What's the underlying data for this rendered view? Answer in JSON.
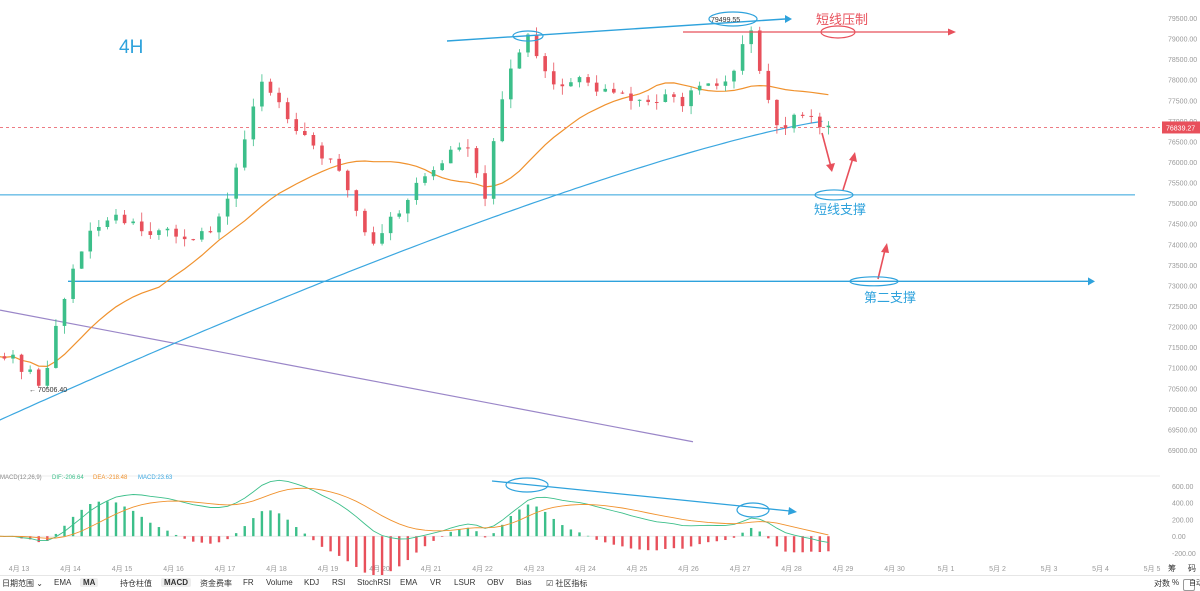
{
  "chart_data": {
    "type": "candlestick",
    "timeframe_label": "4H",
    "y_ticks": [
      79500,
      79000,
      78500,
      78000,
      77500,
      77000,
      76500,
      76000,
      75500,
      75000,
      74500,
      74000,
      73500,
      73000,
      72500,
      72000,
      71500,
      71000,
      70500,
      70000,
      69500,
      69000
    ],
    "y_tick_labels": [
      "79500.00",
      "79000.00",
      "78500.00",
      "78000.00",
      "77500.00",
      "77000.00",
      "76500.00",
      "76000.00",
      "75500.00",
      "75000.00",
      "74500.00",
      "74000.00",
      "73500.00",
      "73000.00",
      "72500.00",
      "72000.00",
      "71500.00",
      "71000.00",
      "70500.00",
      "70000.00",
      "69500.00",
      "69000.00"
    ],
    "x_labels": [
      "4月 13",
      "4月 14",
      "4月 15",
      "4月 16",
      "4月 17",
      "4月 18",
      "4月 19",
      "4月 20",
      "4月 21",
      "4月 22",
      "4月 23",
      "4月 24",
      "4月 25",
      "4月 26",
      "4月 27",
      "4月 28",
      "4月 29",
      "4月 30",
      "5月 1",
      "5月 2",
      "5月 3",
      "5月 4",
      "5月 5"
    ],
    "last_price": 76839.27,
    "last_price_label": "76839.27",
    "high_marker": 79499.55,
    "high_marker_label": "79499.55",
    "low_marker": 70506.4,
    "low_marker_label": "← 70506.40",
    "key_points": [
      {
        "date": "4月13",
        "value": 71200
      },
      {
        "date": "4月13.6",
        "value": 70600
      },
      {
        "date": "4月14.3",
        "value": 73800
      },
      {
        "date": "4月15",
        "value": 74800
      },
      {
        "date": "4月16",
        "value": 74200
      },
      {
        "date": "4月17",
        "value": 74300
      },
      {
        "date": "4月17.9",
        "value": 78000
      },
      {
        "date": "4月18.5",
        "value": 77000
      },
      {
        "date": "4月19.5",
        "value": 75500
      },
      {
        "date": "4月20",
        "value": 74000
      },
      {
        "date": "4月21",
        "value": 75600
      },
      {
        "date": "4月21.8",
        "value": 76500
      },
      {
        "date": "4月22.2",
        "value": 75100
      },
      {
        "date": "4月22.6",
        "value": 77800
      },
      {
        "date": "4月23",
        "value": 79200
      },
      {
        "date": "4月23.6",
        "value": 77800
      },
      {
        "date": "4月24",
        "value": 78000
      },
      {
        "date": "4月25",
        "value": 77500
      },
      {
        "date": "4月26",
        "value": 77500
      },
      {
        "date": "4月27",
        "value": 78000
      },
      {
        "date": "4月27.4",
        "value": 79400
      },
      {
        "date": "4月27.6",
        "value": 77600
      },
      {
        "date": "4月28",
        "value": 76700
      },
      {
        "date": "4月28.4",
        "value": 77300
      },
      {
        "date": "4月28.8",
        "value": 76840
      }
    ],
    "annotations": {
      "resistance_label": "短线压制",
      "support1_label": "短线支撑",
      "support2_label": "第二支撑",
      "support1_level": 75200,
      "support2_level": 73100,
      "resistance_level": 79300
    },
    "macd": {
      "legend_prefix": "MACD(12,26,9)",
      "dif_label": "DIF:-206.64",
      "dea_label": "DEA:-218.48",
      "macd_label": "MACD:23.63",
      "y_ticks": [
        600,
        400,
        200,
        0,
        -200
      ],
      "y_tick_labels": [
        "600.00",
        "400.00",
        "200.00",
        "0.00",
        "-200.00"
      ]
    },
    "colors": {
      "up": "#3cbf8a",
      "down": "#e8505b",
      "ma_orange": "#f0922e",
      "ma_blue": "#3ba7e0",
      "trend_purple": "#9a86c8",
      "annot_blue": "#2ea2dc",
      "annot_red": "#e8505b"
    }
  },
  "toolbar": {
    "date_range": "日期范围",
    "items": [
      "EMA",
      "MA",
      "持仓柱值",
      "MACD",
      "资金费率",
      "FR",
      "Volume",
      "KDJ",
      "RSI",
      "StochRSI",
      "EMA",
      "VR",
      "LSUR",
      "OBV",
      "Bias",
      "社区指标"
    ],
    "active": [
      "MA",
      "MACD"
    ],
    "right_items": [
      "对数",
      "%",
      "自动"
    ]
  },
  "corner_labels": {
    "top_right_a": "筹",
    "top_right_b": "码"
  }
}
